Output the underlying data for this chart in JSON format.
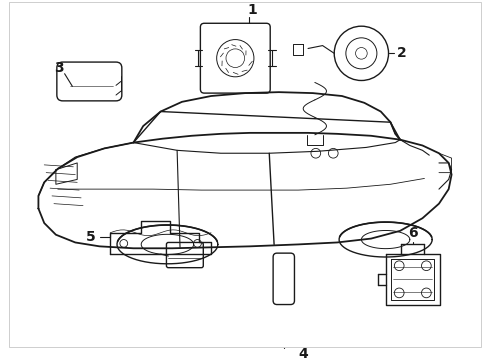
{
  "background_color": "#ffffff",
  "line_color": "#1a1a1a",
  "line_width": 1.0,
  "figsize": [
    4.9,
    3.6
  ],
  "dpi": 100,
  "label_fontsize": 10,
  "label_fontweight": "bold"
}
